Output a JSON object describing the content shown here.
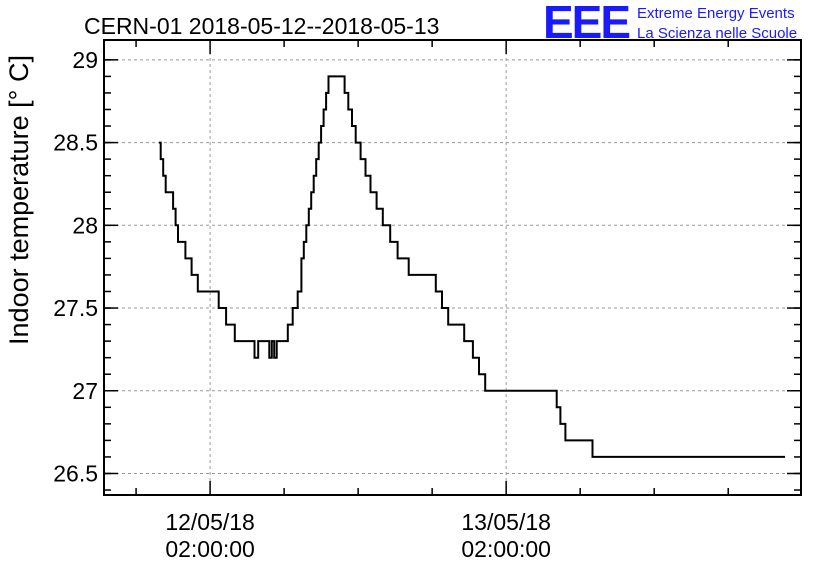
{
  "chart_data": {
    "type": "line",
    "title": "CERN-01 2018-05-12--2018-05-13",
    "ylabel": "Indoor temperature [° C]",
    "xlabel": "",
    "ylim": [
      26.37,
      29.12
    ],
    "y_ticks": [
      26.5,
      27,
      27.5,
      28,
      28.5,
      29
    ],
    "y_tick_labels": [
      "26.5",
      "27",
      "27.5",
      "28",
      "28.5",
      "29"
    ],
    "x_tick_labels": [
      {
        "date": "12/05/18",
        "time": "02:00:00",
        "hours": 2
      },
      {
        "date": "13/05/18",
        "time": "02:00:00",
        "hours": 26
      }
    ],
    "xlim_hours": [
      -6.6,
      49.9
    ],
    "grid": true,
    "series": [
      {
        "x": [
          -2.15,
          -2.0,
          -1.8,
          -1.6,
          -1.3,
          -1.0,
          -0.8,
          -0.6,
          -0.3,
          0.0,
          0.5,
          1.0,
          1.5,
          2.0,
          2.7,
          3.3,
          4.0,
          4.6,
          5.0,
          5.3,
          5.6,
          5.9,
          6.3,
          6.5,
          6.8,
          7.0,
          7.2,
          7.4,
          7.8,
          8.3,
          8.7,
          9.1,
          9.4,
          9.6,
          9.8,
          10.0,
          10.2,
          10.4,
          10.6,
          10.8,
          11.0,
          11.2,
          11.4,
          11.6,
          11.8,
          12.0,
          12.3,
          12.6,
          12.9,
          13.2,
          13.5,
          13.8,
          14.2,
          14.6,
          15.0,
          15.5,
          16.0,
          16.3,
          16.6,
          16.9,
          17.2,
          17.6,
          18.1,
          18.8,
          19.6,
          20.3,
          20.8,
          21.3,
          22.0,
          22.6,
          22.9,
          23.3,
          23.8,
          24.3,
          24.6,
          25.0,
          25.4,
          25.6,
          25.8,
          26.3,
          26.6,
          26.9,
          27.2,
          27.4,
          27.6,
          28.0,
          28.4,
          28.8,
          29.3,
          29.6,
          30.1,
          30.4,
          30.8,
          31.5,
          32.3,
          33.0,
          33.6,
          34.3,
          34.9,
          35.7,
          36.4,
          37.0,
          37.5,
          37.9,
          38.3,
          39.1,
          40.3,
          41.1,
          41.5,
          42.2,
          42.8,
          43.2,
          43.6,
          44.3,
          44.7,
          45.3,
          46.0,
          46.8,
          47.5,
          47.8,
          48.2,
          48.6
        ],
        "y": [
          28.5,
          28.4,
          28.3,
          28.2,
          28.2,
          28.1,
          28.0,
          27.9,
          27.9,
          27.8,
          27.7,
          27.6,
          27.6,
          27.6,
          27.5,
          27.4,
          27.3,
          27.3,
          27.3,
          27.3,
          27.2,
          27.3,
          27.3,
          27.3,
          27.2,
          27.3,
          27.2,
          27.3,
          27.3,
          27.4,
          27.5,
          27.6,
          27.8,
          27.9,
          28.0,
          28.1,
          28.2,
          28.3,
          28.4,
          28.5,
          28.6,
          28.7,
          28.8,
          28.9,
          28.9,
          28.9,
          28.9,
          28.9,
          28.8,
          28.7,
          28.6,
          28.5,
          28.4,
          28.3,
          28.2,
          28.1,
          28.0,
          28.0,
          27.9,
          27.9,
          27.8,
          27.8,
          27.7,
          27.7,
          27.7,
          27.6,
          27.5,
          27.4,
          27.4,
          27.3,
          27.3,
          27.2,
          27.1,
          27.0,
          27.0,
          27.0,
          27.0,
          27.0,
          27.0,
          27.0,
          27.0,
          27.0,
          27.0,
          27.0,
          27.0,
          27.0,
          27.0,
          27.0,
          27.0,
          27.0,
          26.9,
          26.8,
          26.7,
          26.7,
          26.7,
          26.6,
          26.6,
          26.6,
          26.6,
          26.6,
          26.6,
          26.6,
          26.6,
          26.6,
          26.6,
          26.6,
          26.6,
          26.6,
          26.6,
          26.6,
          26.6,
          26.6,
          26.6,
          26.6,
          26.6,
          26.6,
          26.6,
          26.6,
          26.6,
          26.6,
          26.6,
          26.6
        ]
      }
    ]
  },
  "logo": {
    "mark": "EEE",
    "line1": "Extreme Energy Events",
    "line2": "La Scienza nelle Scuole"
  }
}
